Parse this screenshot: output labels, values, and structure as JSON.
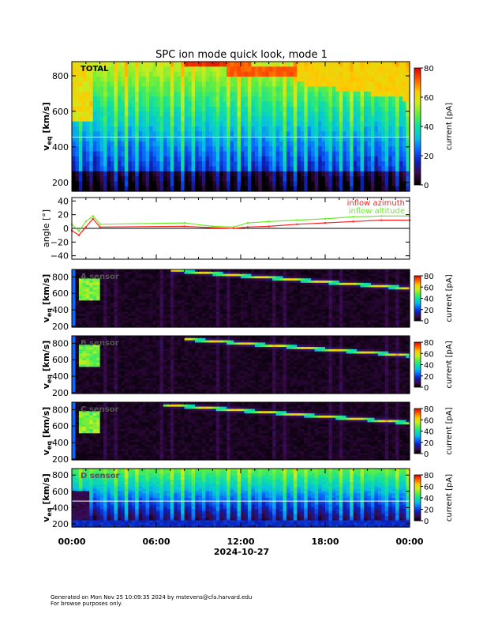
{
  "page": {
    "title": "SPC ion mode quick look, mode 1",
    "footer_line1": "Generated on Mon Nov 25 10:09:35 2024 by mstevens@cfa.harvard.edu",
    "footer_line2": "For browse purposes only."
  },
  "colors": {
    "azimuth": "#ff2020",
    "altitude": "#66ee22",
    "colormap": [
      "#000000",
      "#3a0a4a",
      "#0a1fb8",
      "#0a66ff",
      "#08c0e0",
      "#10e0a0",
      "#60ee40",
      "#c8ee20",
      "#ffc800",
      "#ff5a00",
      "#e00000"
    ]
  },
  "chart_data": [
    {
      "type": "heatmap",
      "name": "total",
      "panel_label": "TOTAL",
      "ylabel_main": "v",
      "ylabel_sub": "eq",
      "ylabel_unit": " [km/s]",
      "yticks": [
        "200",
        "400",
        "600",
        "800"
      ],
      "ylim": [
        150,
        880
      ],
      "colorbar_label": "current [pA]",
      "colorbar_ticks": [
        "0",
        "20",
        "40",
        "60",
        "80"
      ],
      "colorbar_range": [
        0,
        80
      ],
      "marker_line_kms": 455
    },
    {
      "type": "line",
      "name": "angles",
      "ylabel": "angle [°]",
      "yticks": [
        "−40",
        "−20",
        "0",
        "20",
        "40"
      ],
      "ylim": [
        -45,
        45
      ],
      "zero_line": true,
      "series": [
        {
          "name": "inflow azimuth",
          "x_hours": [
            0,
            0.5,
            1,
            1.5,
            2,
            8,
            10,
            11.5,
            12.5,
            14,
            16,
            18,
            20,
            22,
            24
          ],
          "y_deg": [
            -3,
            -10,
            2,
            14,
            2,
            3,
            1,
            0,
            2,
            3,
            6,
            8,
            10,
            12,
            12
          ]
        },
        {
          "name": "inflow altitude",
          "x_hours": [
            0,
            0.5,
            1,
            1.5,
            2,
            8,
            10,
            11.5,
            12.5,
            14,
            16,
            18,
            20,
            22,
            24
          ],
          "y_deg": [
            6,
            -4,
            10,
            18,
            6,
            8,
            3,
            2,
            8,
            10,
            12,
            14,
            17,
            18,
            18
          ]
        }
      ]
    },
    {
      "type": "heatmap",
      "name": "a_sensor",
      "panel_label": "A sensor",
      "ylabel_main": "v",
      "ylabel_sub": "eq",
      "ylabel_unit": " [km/s]",
      "yticks": [
        "200",
        "400",
        "600",
        "800"
      ],
      "ylim": [
        190,
        890
      ],
      "colorbar_label": "current [pA]",
      "colorbar_ticks": [
        "0",
        "20",
        "40",
        "60",
        "80"
      ],
      "colorbar_range": [
        0,
        80
      ],
      "band_start_hour": 7,
      "band_start_kms": 880,
      "band_end_kms": 660
    },
    {
      "type": "heatmap",
      "name": "b_sensor",
      "panel_label": "B sensor",
      "ylabel_main": "v",
      "ylabel_sub": "eq",
      "ylabel_unit": " [km/s]",
      "yticks": [
        "200",
        "400",
        "600",
        "800"
      ],
      "ylim": [
        190,
        890
      ],
      "colorbar_label": "current [pA]",
      "colorbar_ticks": [
        "0",
        "20",
        "40",
        "60",
        "80"
      ],
      "colorbar_range": [
        0,
        80
      ],
      "band_start_hour": 8,
      "band_start_kms": 850,
      "band_end_kms": 650
    },
    {
      "type": "heatmap",
      "name": "c_sensor",
      "panel_label": "C sensor",
      "ylabel_main": "v",
      "ylabel_sub": "eq",
      "ylabel_unit": " [km/s]",
      "yticks": [
        "200",
        "400",
        "600",
        "800"
      ],
      "ylim": [
        190,
        890
      ],
      "colorbar_label": "current [pA]",
      "colorbar_ticks": [
        "0",
        "20",
        "40",
        "60",
        "80"
      ],
      "colorbar_range": [
        0,
        80
      ],
      "band_start_hour": 6.5,
      "band_start_kms": 860,
      "band_end_kms": 640
    },
    {
      "type": "heatmap",
      "name": "d_sensor",
      "panel_label": "D sensor",
      "ylabel_main": "v",
      "ylabel_sub": "eq",
      "ylabel_unit": " [km/s]",
      "yticks": [
        "200",
        "400",
        "600",
        "800"
      ],
      "ylim": [
        160,
        880
      ],
      "colorbar_label": "current [pA]",
      "colorbar_ticks": [
        "0",
        "20",
        "40",
        "60",
        "80"
      ],
      "colorbar_range": [
        0,
        80
      ],
      "marker_line_kms": 480
    }
  ],
  "x_axis": {
    "tick_labels": [
      "00:00",
      "06:00",
      "12:00",
      "18:00",
      "00:00"
    ],
    "tick_hours": [
      0,
      6,
      12,
      18,
      24
    ],
    "date_label": "2024-10-27"
  }
}
